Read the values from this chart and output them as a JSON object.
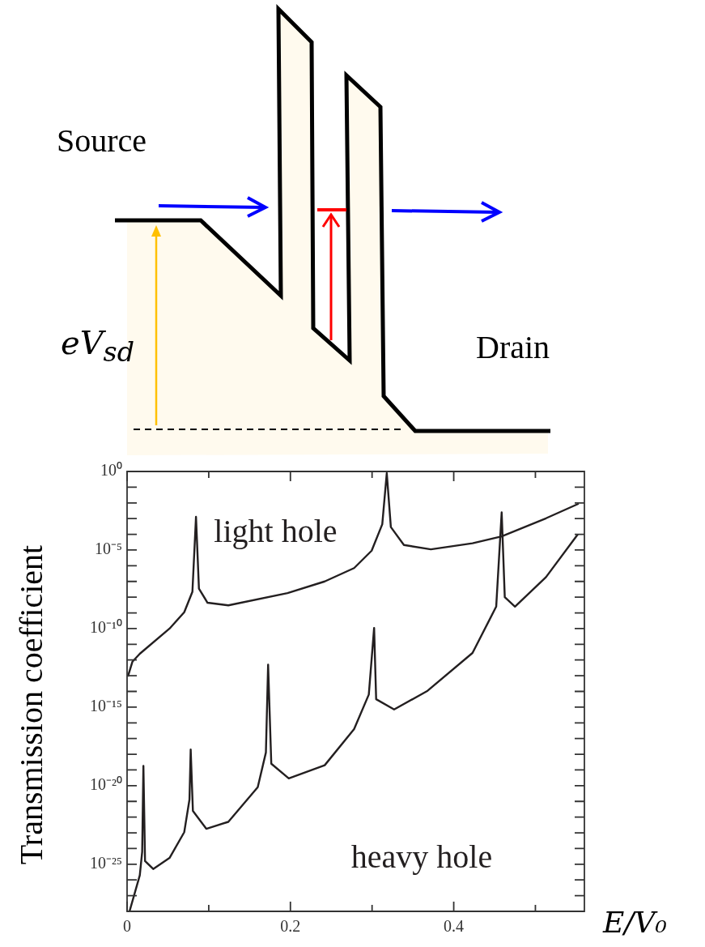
{
  "chart_data": {
    "type": "line",
    "xlabel": "E/V₀",
    "ylabel": "Transmission coefficient",
    "log": "y",
    "grid": false,
    "legend": false,
    "marker": "none",
    "line_style": "solid",
    "xlim": [
      0,
      0.56
    ],
    "xticks": [
      0,
      {
        "value": 0.1,
        "label": null
      },
      0.2,
      {
        "value": 0.3,
        "label": null
      },
      0.4,
      {
        "value": 0.5,
        "label": null
      }
    ],
    "ylim": [
      1e-28,
      1
    ],
    "yticks": [
      {
        "value": 1,
        "label": "10⁰"
      },
      {
        "value": 0.1,
        "label": null
      },
      {
        "value": 0.01,
        "label": null
      },
      {
        "value": 0.001,
        "label": null
      },
      {
        "value": 0.0001,
        "label": null
      },
      {
        "value": 1e-05,
        "label": "10⁻⁵"
      },
      {
        "value": 1e-06,
        "label": null
      },
      {
        "value": 1e-07,
        "label": null
      },
      {
        "value": 1e-08,
        "label": null
      },
      {
        "value": 1e-09,
        "label": null
      },
      {
        "value": 1e-10,
        "label": "10⁻¹⁰"
      },
      {
        "value": 1e-11,
        "label": null
      },
      {
        "value": 1e-12,
        "label": null
      },
      {
        "value": 1e-13,
        "label": null
      },
      {
        "value": 1e-14,
        "label": null
      },
      {
        "value": 1e-15,
        "label": "10⁻¹⁵"
      },
      {
        "value": 1e-16,
        "label": null
      },
      {
        "value": 1e-17,
        "label": null
      },
      {
        "value": 1e-18,
        "label": null
      },
      {
        "value": 1e-19,
        "label": null
      },
      {
        "value": 1e-20,
        "label": "10⁻²⁰"
      },
      {
        "value": 1e-21,
        "label": null
      },
      {
        "value": 1e-22,
        "label": null
      },
      {
        "value": 1e-23,
        "label": null
      },
      {
        "value": 1e-24,
        "label": null
      },
      {
        "value": 1e-25,
        "label": "10⁻²⁵"
      },
      {
        "value": 1e-26,
        "label": null
      },
      {
        "value": 1e-27,
        "label": null
      }
    ],
    "annotations": [
      "Source",
      "Drain",
      "eV$_{sd}$"
    ],
    "series": [
      {
        "name": "light hole",
        "color": "#231f20",
        "x": [
          0.001,
          0.0066,
          0.0156,
          0.052,
          0.07,
          0.08,
          0.0844,
          0.088,
          0.0985,
          0.124,
          0.1965,
          0.242,
          0.278,
          0.2995,
          0.3125,
          0.318,
          0.323,
          0.339,
          0.372,
          0.423,
          0.4587,
          0.513,
          0.553
        ],
        "values": [
          8.9e-14,
          7.9e-13,
          2.5e-12,
          1e-10,
          1.1e-09,
          2.2e-08,
          0.0013,
          3.5e-08,
          4.4e-09,
          3e-09,
          1.8e-08,
          1e-07,
          7.1e-07,
          9.1e-06,
          0.00044,
          0.79,
          0.00029,
          2.1e-05,
          1.1e-05,
          2.7e-05,
          7.4e-05,
          0.00105,
          0.0089
        ]
      },
      {
        "name": "heavy hole",
        "color": "#231f20",
        "x": [
          0.003,
          0.0156,
          0.0185,
          0.02,
          0.022,
          0.032,
          0.052,
          0.07,
          0.0764,
          0.0779,
          0.0806,
          0.097,
          0.124,
          0.16,
          0.17,
          0.1727,
          0.1766,
          0.198,
          0.242,
          0.278,
          0.296,
          0.3025,
          0.305,
          0.327,
          0.368,
          0.423,
          0.452,
          0.4587,
          0.4625,
          0.475,
          0.513,
          0.552
        ],
        "values": [
          1e-28,
          2e-26,
          6.3e-25,
          1.8e-19,
          1.6e-25,
          5e-26,
          2.5e-25,
          1.1e-23,
          1.3e-21,
          2e-18,
          2.5e-22,
          1.8e-23,
          5e-23,
          7.9e-21,
          1.3e-18,
          5e-13,
          2.5e-19,
          2.9e-20,
          2e-19,
          4e-17,
          6.3e-15,
          1.1e-10,
          3.2e-15,
          7.1e-16,
          1.1e-14,
          2.8e-12,
          2.5e-09,
          0.0025,
          1e-08,
          2.5e-09,
          1.9e-07,
          0.0001
        ]
      }
    ]
  }
}
